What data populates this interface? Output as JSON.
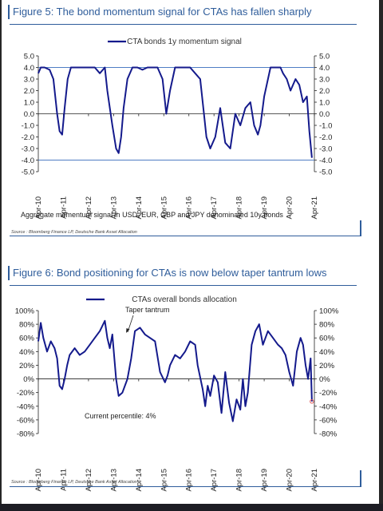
{
  "figure5": {
    "title": "Figure 5: The bond momentum signal for CTAs has fallen sharply",
    "legend": "CTA bonds 1y momentum signal",
    "note": "Aggregate momentum signal in USD, EUR, GBP and JPY denominated 10y bonds",
    "source": "Source : Bloomberg Finance LP, Deutsche Bank Asset Allocation"
  },
  "figure6": {
    "title": "Figure 6: Bond positioning for CTAs is now below taper tantrum lows",
    "legend": "CTAs overall bonds allocation",
    "annotation_taper": "Taper tantrum",
    "annotation_percentile": "Current percentile: 4%",
    "source": "Source : Bloomberg Finance LP, Deutsche Bank Asset Allocation"
  },
  "colors": {
    "series": "#141a8c",
    "title": "#2f5d9b",
    "reference_line": "#4f7dc4",
    "marker": "#e06060"
  },
  "chart_data": [
    {
      "type": "line",
      "title": "Figure 5: The bond momentum signal for CTAs has fallen sharply",
      "ylim": [
        -5,
        5
      ],
      "yticks": [
        "5.0",
        "4.0",
        "3.0",
        "2.0",
        "1.0",
        "0.0",
        "-1.0",
        "-2.0",
        "-3.0",
        "-4.0",
        "-5.0"
      ],
      "xticks": [
        "Apr-10",
        "Apr-11",
        "Apr-12",
        "Apr-13",
        "Apr-14",
        "Apr-15",
        "Apr-16",
        "Apr-17",
        "Apr-18",
        "Apr-19",
        "Apr-20",
        "Apr-21"
      ],
      "reference_lines": [
        4,
        -4
      ],
      "legend_position": "top-center",
      "grid": false,
      "series": [
        {
          "name": "CTA bonds 1y momentum signal",
          "x": [
            2010.25,
            2010.35,
            2010.5,
            2010.7,
            2010.85,
            2011.0,
            2011.1,
            2011.2,
            2011.3,
            2011.42,
            2011.55,
            2011.75,
            2012.0,
            2012.3,
            2012.5,
            2012.7,
            2012.9,
            2013.0,
            2013.2,
            2013.35,
            2013.45,
            2013.55,
            2013.65,
            2013.8,
            2014.0,
            2014.2,
            2014.4,
            2014.6,
            2014.8,
            2015.0,
            2015.2,
            2015.35,
            2015.5,
            2015.7,
            2015.9,
            2016.1,
            2016.3,
            2016.5,
            2016.7,
            2016.85,
            2016.95,
            2017.1,
            2017.3,
            2017.5,
            2017.7,
            2017.9,
            2018.1,
            2018.3,
            2018.5,
            2018.7,
            2018.85,
            2019.0,
            2019.1,
            2019.25,
            2019.5,
            2019.75,
            2019.9,
            2020.0,
            2020.15,
            2020.3,
            2020.5,
            2020.65,
            2020.8,
            2020.95,
            2021.05,
            2021.15
          ],
          "values": [
            3.5,
            4.0,
            4.0,
            3.8,
            3.0,
            0.0,
            -1.5,
            -1.8,
            0.5,
            3.0,
            4.0,
            4.0,
            4.0,
            4.0,
            4.0,
            3.5,
            4.0,
            2.0,
            -1.0,
            -3.0,
            -3.4,
            -2.0,
            0.5,
            3.0,
            4.0,
            4.0,
            3.8,
            4.0,
            4.0,
            4.0,
            3.0,
            0.0,
            2.0,
            4.0,
            4.0,
            4.0,
            4.0,
            3.5,
            3.0,
            0.0,
            -2.0,
            -3.0,
            -2.0,
            0.5,
            -2.5,
            -3.0,
            0.0,
            -1.0,
            0.5,
            1.0,
            -1.0,
            -1.8,
            -1.0,
            1.5,
            4.0,
            4.0,
            4.0,
            3.5,
            3.0,
            2.0,
            3.0,
            2.5,
            1.0,
            1.5,
            -1.5,
            -3.8
          ]
        }
      ],
      "annotation": "Aggregate momentum signal in USD, EUR, GBP and JPY denominated 10y bonds"
    },
    {
      "type": "line",
      "title": "Figure 6: Bond positioning for CTAs is now below taper tantrum lows",
      "ylim": [
        -80,
        100
      ],
      "yticks": [
        "100%",
        "80%",
        "60%",
        "40%",
        "20%",
        "0%",
        "-20%",
        "-40%",
        "-60%",
        "-80%"
      ],
      "xticks": [
        "Apr-10",
        "Apr-11",
        "Apr-12",
        "Apr-13",
        "Apr-14",
        "Apr-15",
        "Apr-16",
        "Apr-17",
        "Apr-18",
        "Apr-19",
        "Apr-20",
        "Apr-21"
      ],
      "legend_position": "top-center",
      "grid": false,
      "series": [
        {
          "name": "CTAs overall bonds allocation",
          "x": [
            2010.25,
            2010.35,
            2010.45,
            2010.6,
            2010.75,
            2010.9,
            2011.0,
            2011.1,
            2011.2,
            2011.3,
            2011.4,
            2011.5,
            2011.7,
            2011.9,
            2012.1,
            2012.3,
            2012.5,
            2012.7,
            2012.9,
            2013.0,
            2013.1,
            2013.2,
            2013.35,
            2013.45,
            2013.6,
            2013.8,
            2013.95,
            2014.1,
            2014.3,
            2014.5,
            2014.7,
            2014.9,
            2015.1,
            2015.3,
            2015.4,
            2015.5,
            2015.7,
            2015.9,
            2016.1,
            2016.3,
            2016.5,
            2016.6,
            2016.8,
            2016.9,
            2017.0,
            2017.1,
            2017.25,
            2017.4,
            2017.55,
            2017.7,
            2017.85,
            2018.0,
            2018.15,
            2018.3,
            2018.4,
            2018.5,
            2018.6,
            2018.75,
            2018.9,
            2019.05,
            2019.2,
            2019.4,
            2019.6,
            2019.8,
            2019.95,
            2020.1,
            2020.25,
            2020.4,
            2020.55,
            2020.7,
            2020.8,
            2020.9,
            2021.0,
            2021.1,
            2021.15
          ],
          "values": [
            55,
            82,
            60,
            40,
            55,
            45,
            30,
            -10,
            -15,
            0,
            20,
            35,
            45,
            35,
            40,
            50,
            60,
            70,
            85,
            60,
            45,
            65,
            0,
            -25,
            -20,
            0,
            30,
            70,
            75,
            65,
            60,
            55,
            10,
            -5,
            5,
            20,
            35,
            30,
            40,
            55,
            50,
            20,
            -15,
            -40,
            -10,
            -25,
            5,
            -5,
            -50,
            10,
            -35,
            -62,
            -30,
            -45,
            0,
            -40,
            -20,
            50,
            70,
            80,
            50,
            70,
            60,
            50,
            45,
            35,
            10,
            -10,
            40,
            60,
            50,
            20,
            0,
            30,
            -33
          ]
        }
      ],
      "annotations": [
        "Taper tantrum",
        "Current percentile: 4%"
      ]
    }
  ]
}
